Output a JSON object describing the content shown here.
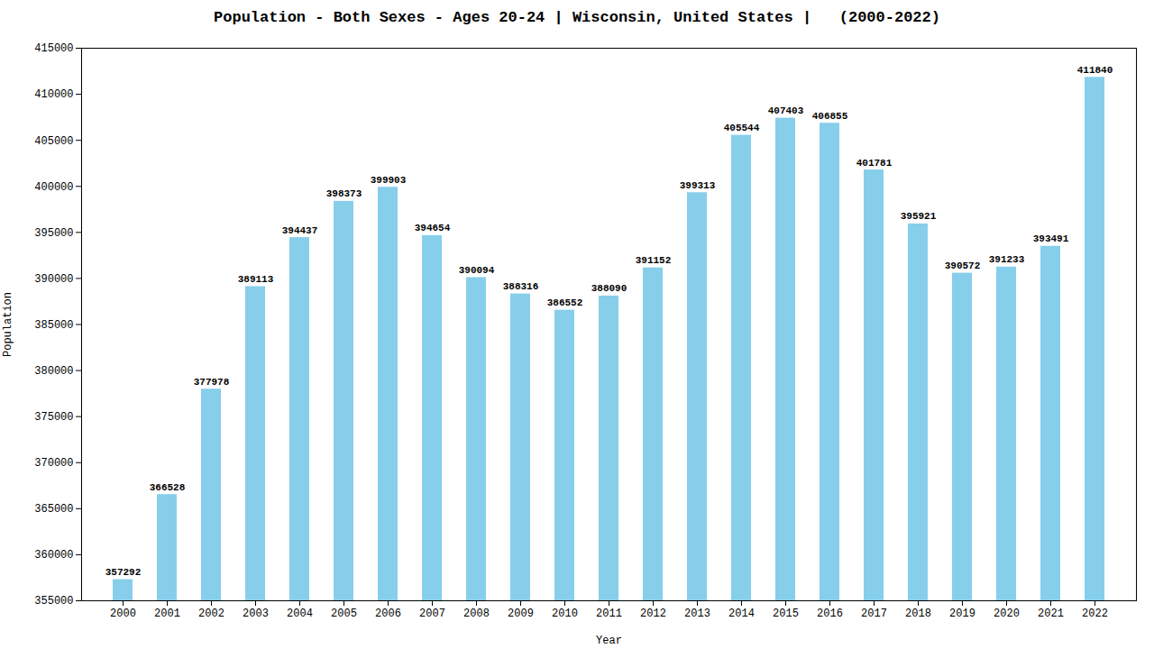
{
  "chart_data": {
    "type": "bar",
    "title": "Population - Both Sexes - Ages 20-24 | Wisconsin, United States |   (2000-2022)",
    "x_label": "Year",
    "y_label": "Population",
    "categories": [
      "2000",
      "2001",
      "2002",
      "2003",
      "2004",
      "2005",
      "2006",
      "2007",
      "2008",
      "2009",
      "2010",
      "2011",
      "2012",
      "2013",
      "2014",
      "2015",
      "2016",
      "2017",
      "2018",
      "2019",
      "2020",
      "2021",
      "2022"
    ],
    "values": [
      357292,
      366528,
      377978,
      389113,
      394437,
      398373,
      399903,
      394654,
      390094,
      388316,
      386552,
      388090,
      391152,
      399313,
      405544,
      407403,
      406855,
      401781,
      395921,
      390572,
      391233,
      393491,
      411840
    ],
    "color": "#87CEEB",
    "ylim": [
      355000,
      415000
    ],
    "yticks": [
      355000,
      360000,
      365000,
      370000,
      375000,
      380000,
      385000,
      390000,
      395000,
      400000,
      405000,
      410000,
      415000
    ],
    "grid": false,
    "data_labels": true
  }
}
